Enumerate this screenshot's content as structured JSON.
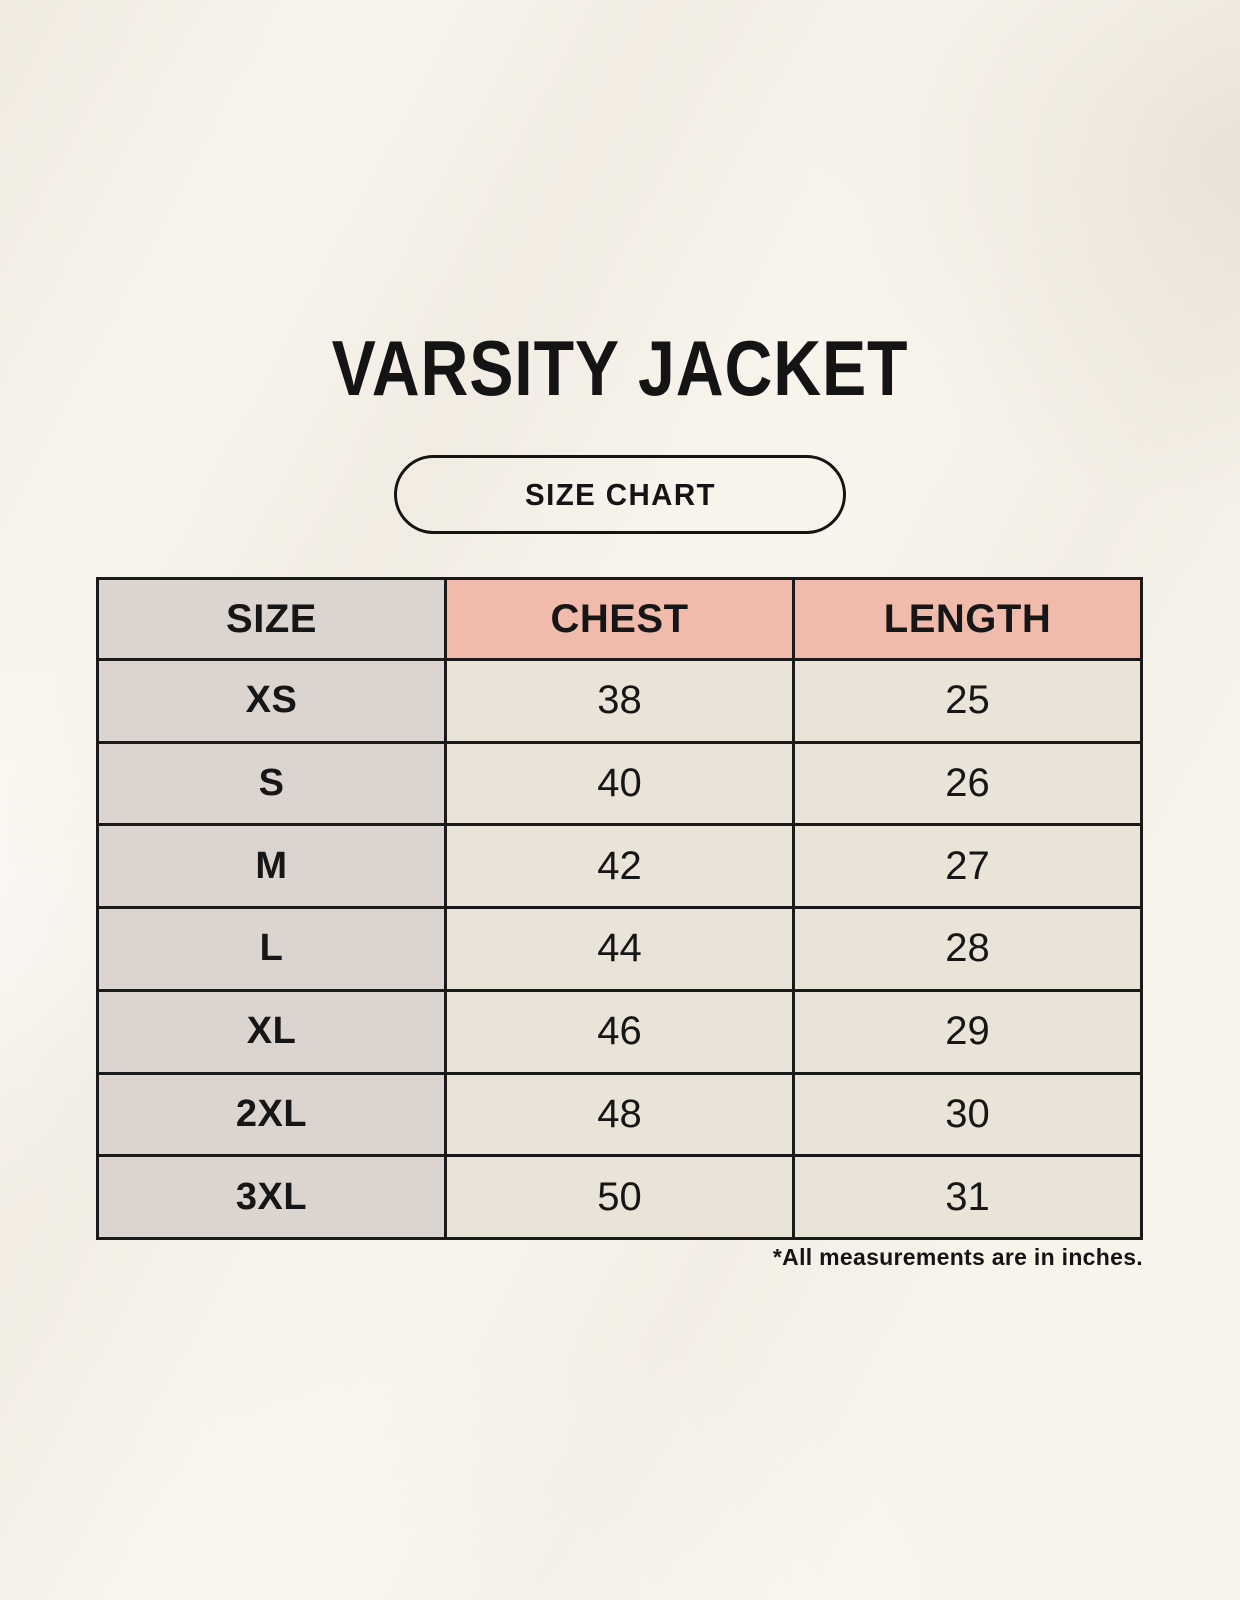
{
  "header": {
    "title": "VARSITY JACKET",
    "badge_label": "SIZE CHART"
  },
  "footnote": "*All measurements are in inches.",
  "colors": {
    "page_background": "#F8F4EC",
    "size_column_fill": "#DCD5CF",
    "accent_header_fill": "#F0BBAA",
    "value_cell_fill": "#EAE4D8",
    "table_border": "#1A1A1A",
    "text": "#161616"
  },
  "chart_data": {
    "type": "table",
    "title": "VARSITY JACKET",
    "subtitle": "SIZE CHART",
    "columns": [
      "SIZE",
      "CHEST",
      "LENGTH"
    ],
    "rows": [
      [
        "XS",
        38,
        25
      ],
      [
        "S",
        40,
        26
      ],
      [
        "M",
        42,
        27
      ],
      [
        "L",
        44,
        28
      ],
      [
        "XL",
        46,
        29
      ],
      [
        "2XL",
        48,
        30
      ],
      [
        "3XL",
        50,
        31
      ]
    ],
    "units": "inches",
    "note": "*All measurements are in inches."
  }
}
